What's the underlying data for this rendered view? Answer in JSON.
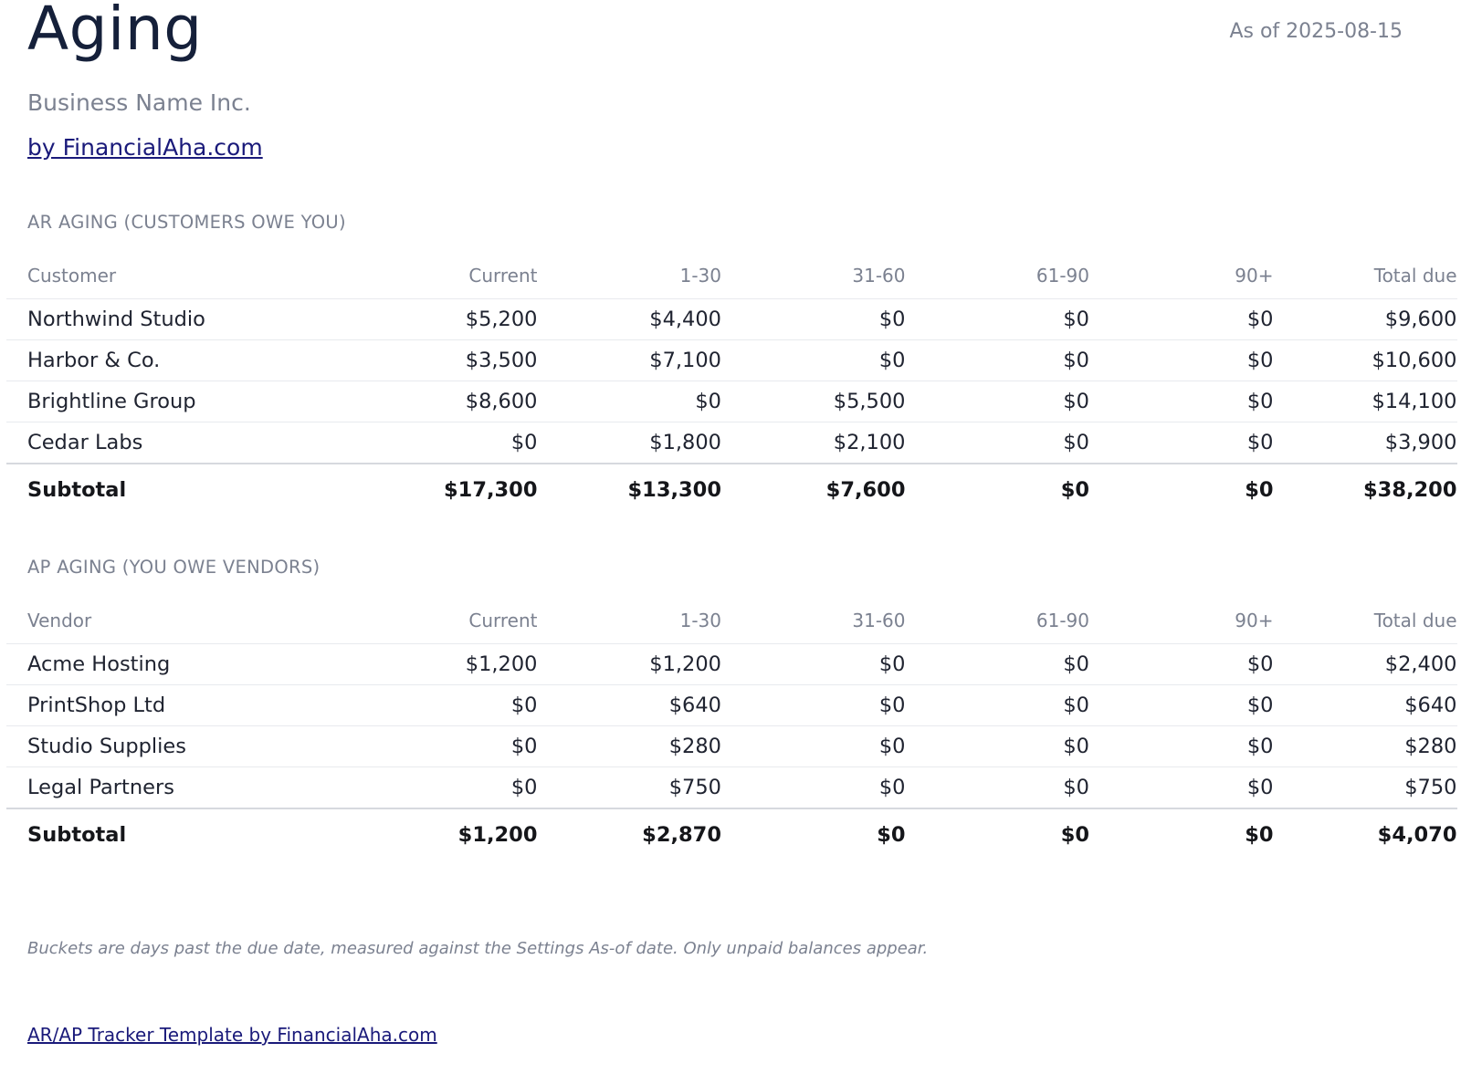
{
  "header": {
    "title": "Aging",
    "as_of": "As of 2025-08-15",
    "business_name": "Business Name Inc.",
    "brand_link": "by FinancialAha.com"
  },
  "ar": {
    "section_title": "AR AGING (CUSTOMERS OWE YOU)",
    "columns": [
      "Customer",
      "Current",
      "1-30",
      "31-60",
      "61-90",
      "90+",
      "Total due"
    ],
    "rows": [
      [
        "Northwind Studio",
        "$5,200",
        "$4,400",
        "$0",
        "$0",
        "$0",
        "$9,600"
      ],
      [
        "Harbor & Co.",
        "$3,500",
        "$7,100",
        "$0",
        "$0",
        "$0",
        "$10,600"
      ],
      [
        "Brightline Group",
        "$8,600",
        "$0",
        "$5,500",
        "$0",
        "$0",
        "$14,100"
      ],
      [
        "Cedar Labs",
        "$0",
        "$1,800",
        "$2,100",
        "$0",
        "$0",
        "$3,900"
      ]
    ],
    "subtotal": [
      "Subtotal",
      "$17,300",
      "$13,300",
      "$7,600",
      "$0",
      "$0",
      "$38,200"
    ]
  },
  "ap": {
    "section_title": "AP AGING (YOU OWE VENDORS)",
    "columns": [
      "Vendor",
      "Current",
      "1-30",
      "31-60",
      "61-90",
      "90+",
      "Total due"
    ],
    "rows": [
      [
        "Acme Hosting",
        "$1,200",
        "$1,200",
        "$0",
        "$0",
        "$0",
        "$2,400"
      ],
      [
        "PrintShop Ltd",
        "$0",
        "$640",
        "$0",
        "$0",
        "$0",
        "$640"
      ],
      [
        "Studio Supplies",
        "$0",
        "$280",
        "$0",
        "$0",
        "$0",
        "$280"
      ],
      [
        "Legal Partners",
        "$0",
        "$750",
        "$0",
        "$0",
        "$0",
        "$750"
      ]
    ],
    "subtotal": [
      "Subtotal",
      "$1,200",
      "$2,870",
      "$0",
      "$0",
      "$0",
      "$4,070"
    ]
  },
  "footer": {
    "note": "Buckets are days past the due date, measured against the Settings As-of date. Only unpaid balances appear.",
    "link": "AR/AP Tracker Template by FinancialAha.com"
  },
  "colors": {
    "title": "#15203a",
    "muted": "#7b8190",
    "link": "#1a1a7a",
    "text": "#1f2330"
  }
}
